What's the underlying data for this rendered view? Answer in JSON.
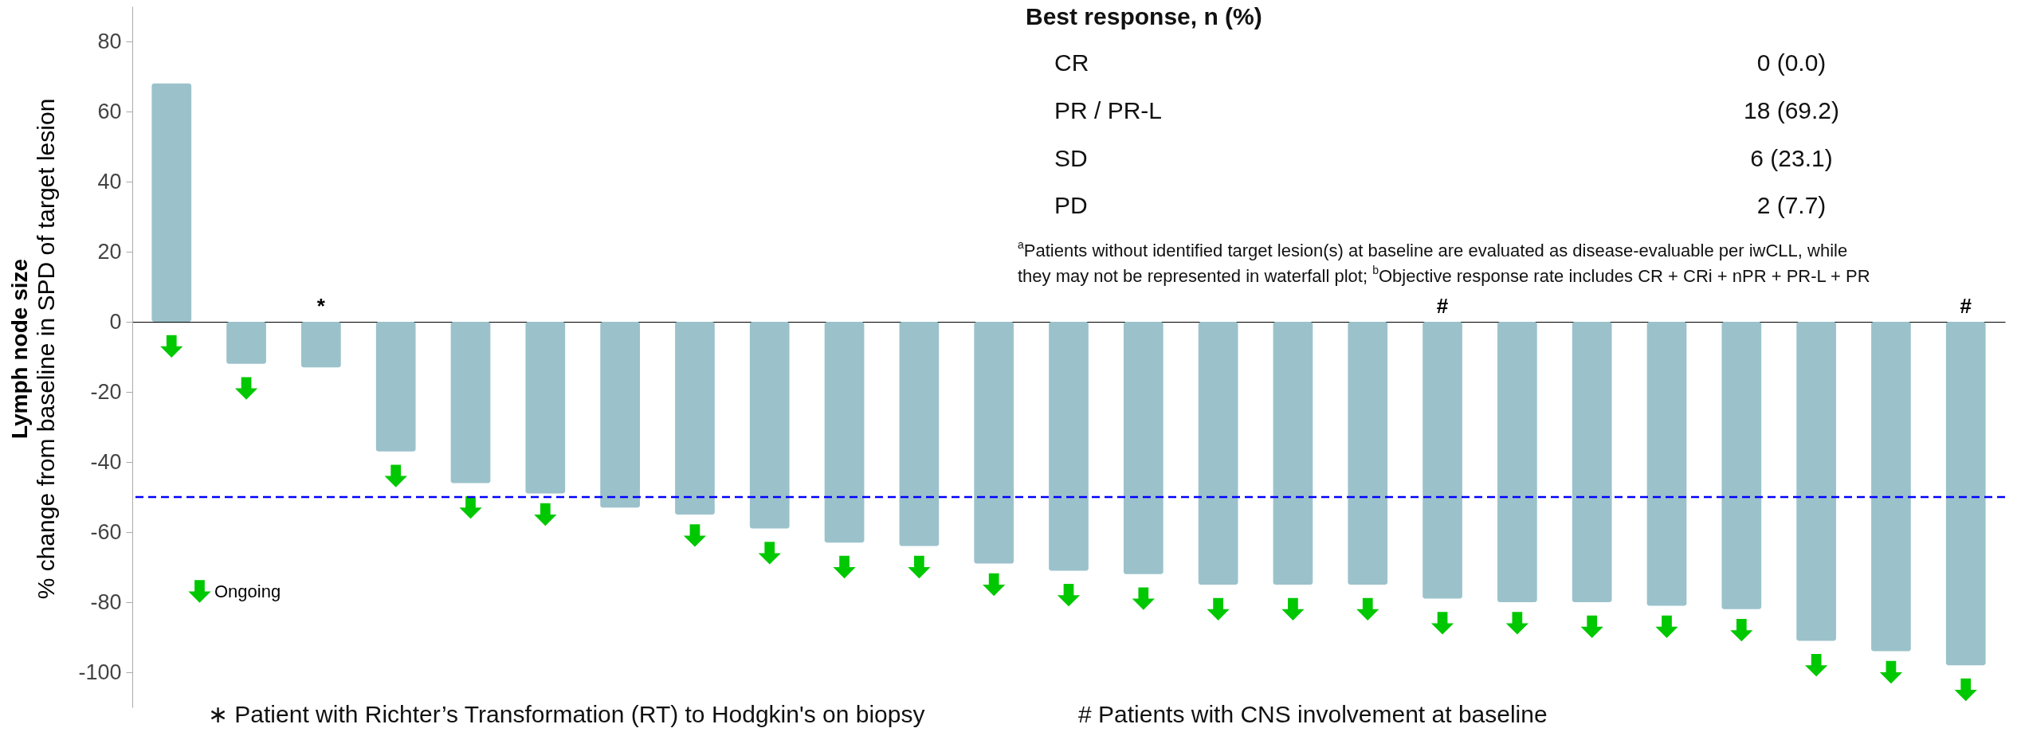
{
  "chart_data": {
    "type": "bar",
    "ylabel": "Lymph node size\n% change from baseline in SPD of target lesion",
    "categories": [
      null,
      null,
      null,
      null,
      null,
      null,
      null,
      null,
      null,
      null,
      null,
      null,
      null,
      null,
      null,
      null,
      null,
      null,
      null,
      null,
      null,
      null,
      null,
      null,
      null
    ],
    "series": [
      {
        "color": "#9bc2cb",
        "values": [
          68,
          -12,
          -13,
          -37,
          -46,
          -49,
          -53,
          -55,
          -59,
          -63,
          -64,
          -69,
          -71,
          -72,
          -75,
          -75,
          -75,
          -79,
          -80,
          -80,
          -81,
          -82,
          -91,
          -94,
          -98
        ],
        "value_labels": [
          null,
          null,
          "*",
          null,
          null,
          null,
          null,
          null,
          null,
          null,
          null,
          null,
          null,
          null,
          null,
          null,
          null,
          "#",
          null,
          null,
          null,
          null,
          null,
          null,
          "#"
        ]
      },
      {
        "type": "scatter",
        "name": "Ongoing",
        "color": "#00c800",
        "marker": "triangle",
        "values": [
          -7,
          -19,
          null,
          -44,
          -53,
          -55,
          null,
          -61,
          -66,
          -70,
          -70,
          -75,
          -78,
          -79,
          -82,
          -82,
          -82,
          -86,
          -86,
          -87,
          -87,
          -88,
          -98,
          -100,
          -105
        ]
      }
    ],
    "ylim": [
      -110,
      90
    ],
    "yticks": [
      -100,
      -80,
      -60,
      -40,
      -20,
      0,
      20,
      40,
      60,
      80
    ],
    "legend": "bottom left",
    "ref_lines": [
      {
        "axis": "y",
        "value": -50,
        "color": "#0000ff",
        "line_style": "dashed"
      }
    ],
    "annotations": [
      "Best response, n (%)",
      "CR",
      "0 (0.0)",
      "PR / PR-L",
      "18 (69.2)",
      "SD",
      "6 (23.1)",
      "PD",
      "2 (7.7)",
      "$^{a}$Patients without identified target lesion(s) at baseline are evaluated as disease-evaluable per iwCLL, while",
      "they may not be represented in waterfall plot; $^{b}$Objective response rate includes CR + CRi + nPR + PR-L + PR",
      "∗ Patient with Richter’s Transformation (RT) to Hodgkin's on biopsy",
      "# Patients with CNS involvement at baseline"
    ]
  }
}
